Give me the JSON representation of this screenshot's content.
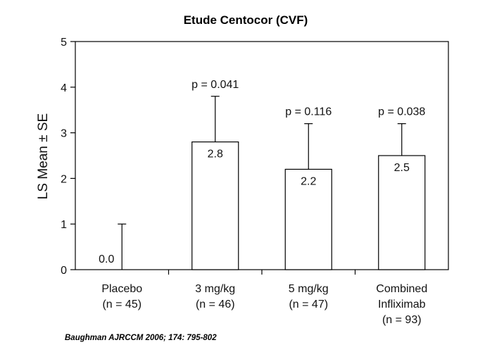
{
  "chart_data": {
    "type": "bar",
    "title": "Etude Centocor (CVF)",
    "ylabel": "LS Mean ± SE",
    "xlabel": "",
    "ylim": [
      0,
      5
    ],
    "yticks": [
      0,
      1,
      2,
      3,
      4,
      5
    ],
    "categories": [
      [
        "Placebo",
        "(n = 45)"
      ],
      [
        "3 mg/kg",
        "(n = 46)"
      ],
      [
        "5 mg/kg",
        "(n = 47)"
      ],
      [
        "Combined",
        "Infliximab",
        "(n = 93)"
      ]
    ],
    "values": [
      0.0,
      2.8,
      2.2,
      2.5
    ],
    "error_upper": [
      1.0,
      3.8,
      3.2,
      3.2
    ],
    "value_labels": [
      "0.0",
      "2.8",
      "2.2",
      "2.5"
    ],
    "annotations": [
      "",
      "p = 0.041",
      "p = 0.116",
      "p = 0.038"
    ],
    "bar_fill": "#ffffff",
    "bar_stroke": "#000000",
    "grid": false,
    "legend": "none"
  },
  "citation": "Baughman AJRCCM 2006; 174: 795-802"
}
